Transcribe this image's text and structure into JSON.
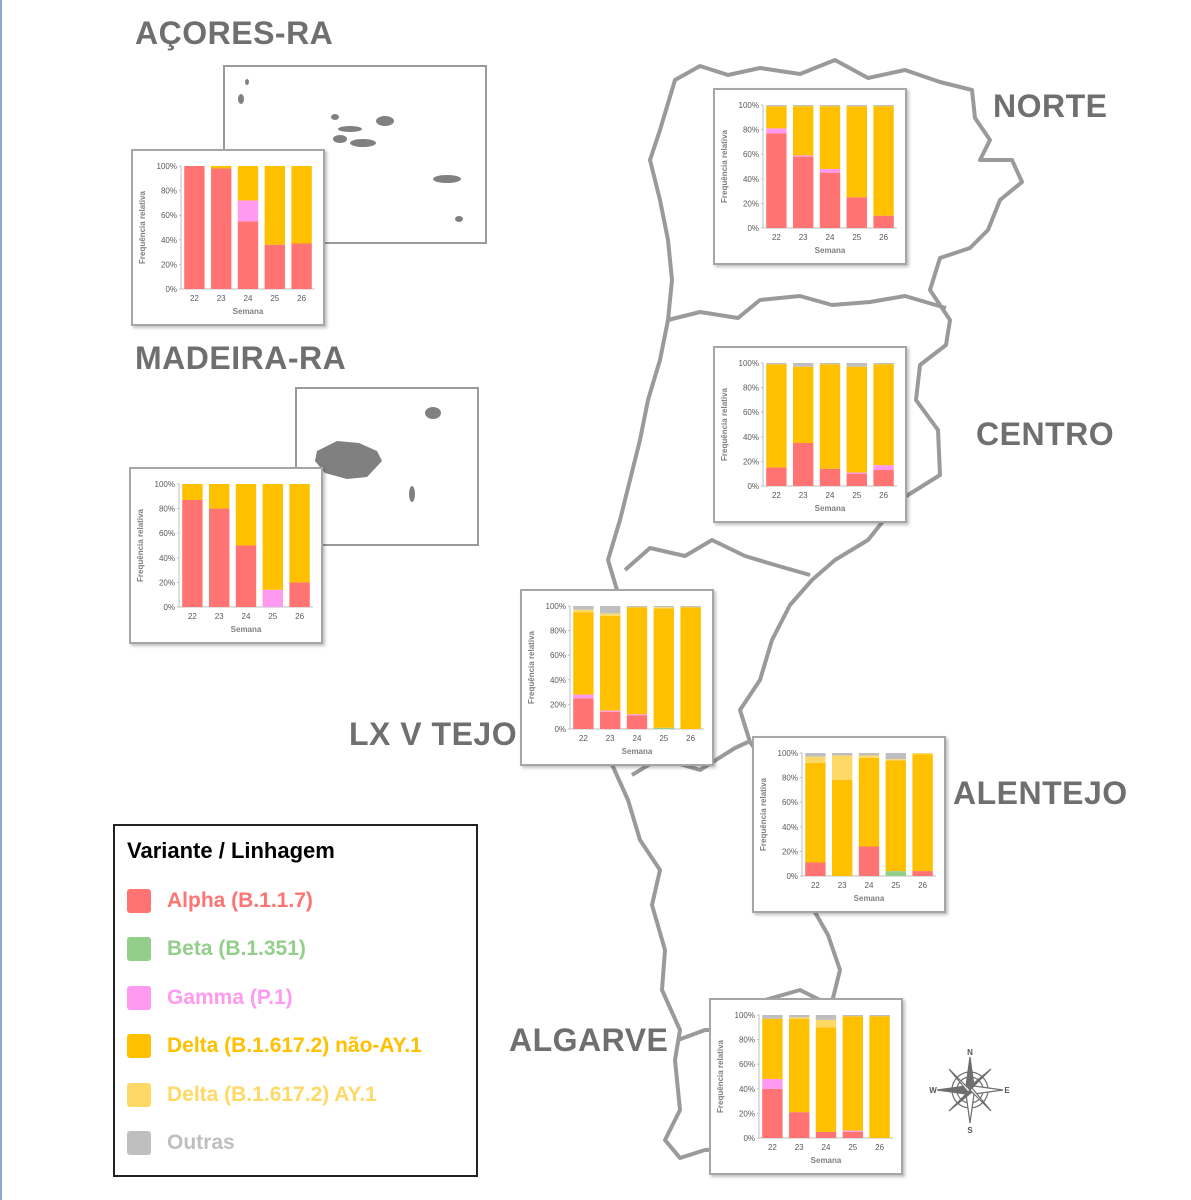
{
  "regions": {
    "acores": "AÇORES-RA",
    "madeira": "MADEIRA-RA",
    "norte": "NORTE",
    "centro": "CENTRO",
    "lx": "LX V TEJO",
    "alentejo": "ALENTEJO",
    "algarve": "ALGARVE"
  },
  "legend": {
    "title": "Variante / Linhagem",
    "items": [
      {
        "label": "Alpha (B.1.1.7)",
        "color": "#ff7373"
      },
      {
        "label": "Beta (B.1.351)",
        "color": "#93cf8a"
      },
      {
        "label": "Gamma (P.1)",
        "color": "#ff9af0"
      },
      {
        "label": "Delta (B.1.617.2) não-AY.1",
        "color": "#ffc000"
      },
      {
        "label": "Delta (B.1.617.2) AY.1",
        "color": "#ffd966"
      },
      {
        "label": "Outras",
        "color": "#bfbfbf"
      }
    ]
  },
  "compass": {
    "n": "N",
    "s": "S",
    "e": "E",
    "w": "W"
  },
  "chart_data": [
    {
      "id": "acores",
      "type": "bar",
      "stacked": true,
      "xlabel": "Semana",
      "ylabel": "Frequência relativa",
      "categories": [
        "22",
        "23",
        "24",
        "25",
        "26"
      ],
      "yticks": [
        "0%",
        "20%",
        "40%",
        "60%",
        "80%",
        "100%"
      ],
      "ylim": [
        0,
        100
      ],
      "series": [
        {
          "name": "Alpha (B.1.1.7)",
          "color": "#ff7373",
          "values": [
            100,
            98,
            55,
            36,
            37
          ]
        },
        {
          "name": "Beta (B.1.351)",
          "color": "#93cf8a",
          "values": [
            0,
            0,
            0,
            0,
            0
          ]
        },
        {
          "name": "Gamma (P.1)",
          "color": "#ff9af0",
          "values": [
            0,
            0,
            17,
            0,
            0
          ]
        },
        {
          "name": "Delta (B.1.617.2) não-AY.1",
          "color": "#ffc000",
          "values": [
            0,
            2,
            28,
            64,
            63
          ]
        },
        {
          "name": "Delta (B.1.617.2) AY.1",
          "color": "#ffd966",
          "values": [
            0,
            0,
            0,
            0,
            0
          ]
        },
        {
          "name": "Outras",
          "color": "#bfbfbf",
          "values": [
            0,
            0,
            0,
            0,
            0
          ]
        }
      ]
    },
    {
      "id": "madeira",
      "type": "bar",
      "stacked": true,
      "xlabel": "Semana",
      "ylabel": "Frequência relativa",
      "categories": [
        "22",
        "23",
        "24",
        "25",
        "26"
      ],
      "yticks": [
        "0%",
        "20%",
        "40%",
        "60%",
        "80%",
        "100%"
      ],
      "ylim": [
        0,
        100
      ],
      "series": [
        {
          "name": "Alpha (B.1.1.7)",
          "color": "#ff7373",
          "values": [
            87,
            80,
            50,
            0,
            20
          ]
        },
        {
          "name": "Beta (B.1.351)",
          "color": "#93cf8a",
          "values": [
            0,
            0,
            0,
            0,
            0
          ]
        },
        {
          "name": "Gamma (P.1)",
          "color": "#ff9af0",
          "values": [
            0,
            0,
            0,
            14,
            0
          ]
        },
        {
          "name": "Delta (B.1.617.2) não-AY.1",
          "color": "#ffc000",
          "values": [
            13,
            20,
            50,
            86,
            80
          ]
        },
        {
          "name": "Delta (B.1.617.2) AY.1",
          "color": "#ffd966",
          "values": [
            0,
            0,
            0,
            0,
            0
          ]
        },
        {
          "name": "Outras",
          "color": "#bfbfbf",
          "values": [
            0,
            0,
            0,
            0,
            0
          ]
        }
      ]
    },
    {
      "id": "norte",
      "type": "bar",
      "stacked": true,
      "xlabel": "Semana",
      "ylabel": "Frequência relativa",
      "categories": [
        "22",
        "23",
        "24",
        "25",
        "26"
      ],
      "yticks": [
        "0%",
        "20%",
        "40%",
        "60%",
        "80%",
        "100%"
      ],
      "ylim": [
        0,
        100
      ],
      "series": [
        {
          "name": "Alpha (B.1.1.7)",
          "color": "#ff7373",
          "values": [
            77,
            58,
            45,
            25,
            10
          ]
        },
        {
          "name": "Beta (B.1.351)",
          "color": "#93cf8a",
          "values": [
            0,
            0,
            0,
            0,
            0
          ]
        },
        {
          "name": "Gamma (P.1)",
          "color": "#ff9af0",
          "values": [
            4,
            1,
            3,
            0,
            0
          ]
        },
        {
          "name": "Delta (B.1.617.2) não-AY.1",
          "color": "#ffc000",
          "values": [
            18,
            40,
            51,
            74,
            89
          ]
        },
        {
          "name": "Delta (B.1.617.2) AY.1",
          "color": "#ffd966",
          "values": [
            0,
            0,
            0,
            0,
            0
          ]
        },
        {
          "name": "Outras",
          "color": "#bfbfbf",
          "values": [
            1,
            1,
            1,
            1,
            1
          ]
        }
      ]
    },
    {
      "id": "centro",
      "type": "bar",
      "stacked": true,
      "xlabel": "Semana",
      "ylabel": "Frequência relativa",
      "categories": [
        "22",
        "23",
        "24",
        "25",
        "26"
      ],
      "yticks": [
        "0%",
        "20%",
        "40%",
        "60%",
        "80%",
        "100%"
      ],
      "ylim": [
        0,
        100
      ],
      "series": [
        {
          "name": "Alpha (B.1.1.7)",
          "color": "#ff7373",
          "values": [
            15,
            35,
            14,
            10,
            13
          ]
        },
        {
          "name": "Beta (B.1.351)",
          "color": "#93cf8a",
          "values": [
            0,
            0,
            0,
            0,
            0
          ]
        },
        {
          "name": "Gamma (P.1)",
          "color": "#ff9af0",
          "values": [
            0,
            0,
            0,
            1,
            4
          ]
        },
        {
          "name": "Delta (B.1.617.2) não-AY.1",
          "color": "#ffc000",
          "values": [
            84,
            62,
            85,
            86,
            82
          ]
        },
        {
          "name": "Delta (B.1.617.2) AY.1",
          "color": "#ffd966",
          "values": [
            0,
            0,
            0,
            0,
            0
          ]
        },
        {
          "name": "Outras",
          "color": "#bfbfbf",
          "values": [
            1,
            3,
            1,
            3,
            1
          ]
        }
      ]
    },
    {
      "id": "lx",
      "type": "bar",
      "stacked": true,
      "xlabel": "Semana",
      "ylabel": "Frequência relativa",
      "categories": [
        "22",
        "23",
        "24",
        "25",
        "26"
      ],
      "yticks": [
        "0%",
        "20%",
        "40%",
        "60%",
        "80%",
        "100%"
      ],
      "ylim": [
        0,
        100
      ],
      "series": [
        {
          "name": "Alpha (B.1.1.7)",
          "color": "#ff7373",
          "values": [
            25,
            14,
            11,
            0,
            0
          ]
        },
        {
          "name": "Beta (B.1.351)",
          "color": "#93cf8a",
          "values": [
            0,
            0,
            0,
            1,
            0
          ]
        },
        {
          "name": "Gamma (P.1)",
          "color": "#ff9af0",
          "values": [
            3,
            1,
            1,
            0,
            0
          ]
        },
        {
          "name": "Delta (B.1.617.2) não-AY.1",
          "color": "#ffc000",
          "values": [
            67,
            77,
            87,
            97,
            99
          ]
        },
        {
          "name": "Delta (B.1.617.2) AY.1",
          "color": "#ffd966",
          "values": [
            2,
            2,
            0,
            1,
            0
          ]
        },
        {
          "name": "Outras",
          "color": "#bfbfbf",
          "values": [
            3,
            6,
            1,
            1,
            1
          ]
        }
      ]
    },
    {
      "id": "alentejo",
      "type": "bar",
      "stacked": true,
      "xlabel": "Semana",
      "ylabel": "Frequência relativa",
      "categories": [
        "22",
        "23",
        "24",
        "25",
        "26"
      ],
      "yticks": [
        "0%",
        "20%",
        "40%",
        "60%",
        "80%",
        "100%"
      ],
      "ylim": [
        0,
        100
      ],
      "series": [
        {
          "name": "Alpha (B.1.1.7)",
          "color": "#ff7373",
          "values": [
            11,
            0,
            24,
            0,
            4
          ]
        },
        {
          "name": "Beta (B.1.351)",
          "color": "#93cf8a",
          "values": [
            0,
            0,
            0,
            4,
            0
          ]
        },
        {
          "name": "Gamma (P.1)",
          "color": "#ff9af0",
          "values": [
            0,
            0,
            0,
            0,
            0
          ]
        },
        {
          "name": "Delta (B.1.617.2) não-AY.1",
          "color": "#ffc000",
          "values": [
            81,
            78,
            72,
            90,
            95
          ]
        },
        {
          "name": "Delta (B.1.617.2) AY.1",
          "color": "#ffd966",
          "values": [
            5,
            20,
            2,
            1,
            1
          ]
        },
        {
          "name": "Outras",
          "color": "#bfbfbf",
          "values": [
            3,
            2,
            2,
            5,
            0
          ]
        }
      ]
    },
    {
      "id": "algarve",
      "type": "bar",
      "stacked": true,
      "xlabel": "Semana",
      "ylabel": "Frequência relativa",
      "categories": [
        "22",
        "23",
        "24",
        "25",
        "26"
      ],
      "yticks": [
        "0%",
        "20%",
        "40%",
        "60%",
        "80%",
        "100%"
      ],
      "ylim": [
        0,
        100
      ],
      "series": [
        {
          "name": "Alpha (B.1.1.7)",
          "color": "#ff7373",
          "values": [
            40,
            21,
            5,
            5,
            0
          ]
        },
        {
          "name": "Beta (B.1.351)",
          "color": "#93cf8a",
          "values": [
            0,
            0,
            0,
            0,
            0
          ]
        },
        {
          "name": "Gamma (P.1)",
          "color": "#ff9af0",
          "values": [
            8,
            0,
            0,
            1,
            0
          ]
        },
        {
          "name": "Delta (B.1.617.2) não-AY.1",
          "color": "#ffc000",
          "values": [
            49,
            76,
            85,
            93,
            99
          ]
        },
        {
          "name": "Delta (B.1.617.2) AY.1",
          "color": "#ffd966",
          "values": [
            0,
            1,
            6,
            0,
            0
          ]
        },
        {
          "name": "Outras",
          "color": "#bfbfbf",
          "values": [
            3,
            2,
            4,
            1,
            1
          ]
        }
      ]
    }
  ]
}
